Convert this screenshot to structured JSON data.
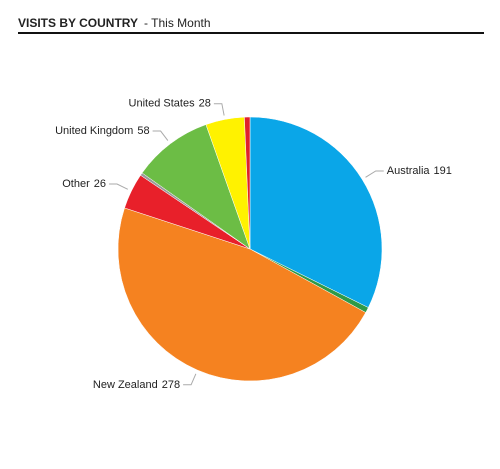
{
  "chart_data": {
    "type": "pie",
    "title": "VISITS BY COUNTRY",
    "subtitle": "- This Month",
    "categories": [
      "Australia",
      null,
      "New Zealand",
      "Other",
      null,
      "United Kingdom",
      "United States",
      null
    ],
    "values": [
      191,
      4,
      278,
      26,
      2,
      58,
      28,
      4
    ],
    "colors": [
      "#0aa6e8",
      "#2f9a48",
      "#f58220",
      "#e8202a",
      "#9a9a9a",
      "#6cbd45",
      "#fff200",
      "#e0202a"
    ]
  }
}
